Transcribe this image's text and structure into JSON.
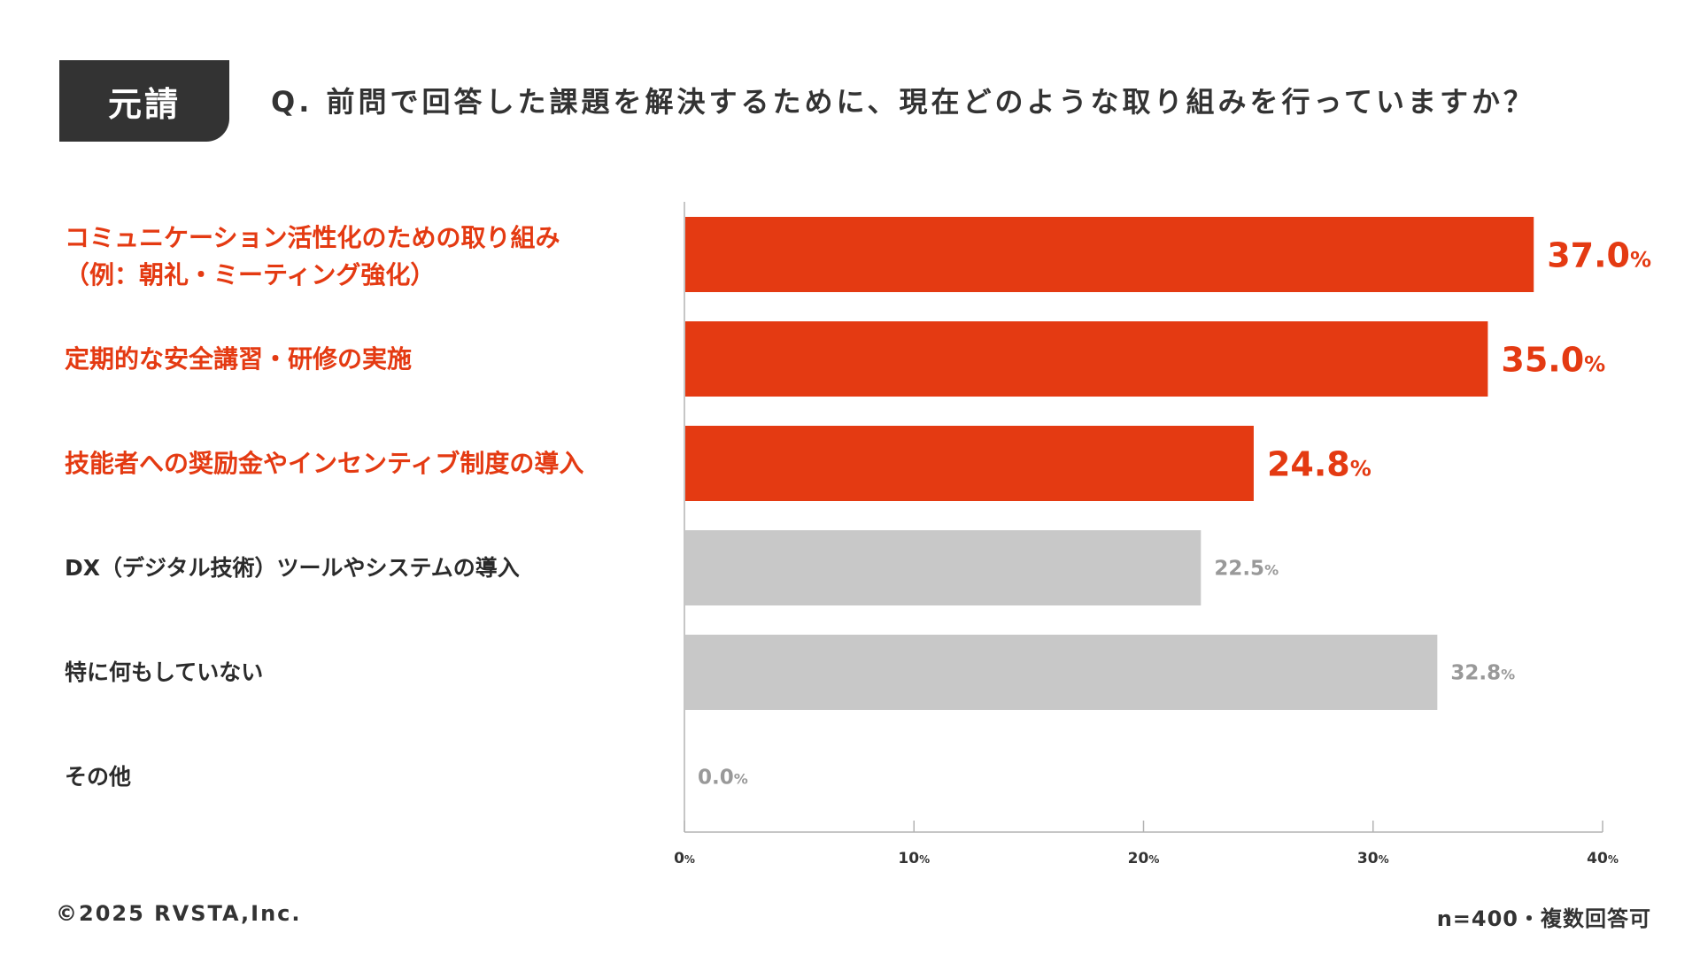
{
  "header": {
    "tag": "元請",
    "question": "Q. 前問で回答した課題を解決するために、現在どのような取り組みを行っていますか？"
  },
  "footer": {
    "copyright": "©2025 RVSTA,Inc.",
    "note": "n=400・複数回答可"
  },
  "colors": {
    "highlight": "#e43a12",
    "neutral": "#c8c8c8",
    "neutral_text": "#999999",
    "axis": "#b3b3b3"
  },
  "chart_data": {
    "type": "bar",
    "orientation": "horizontal",
    "categories": [
      [
        "コミュニケーション活性化のための取り組み",
        "（例：朝礼・ミーティング強化）"
      ],
      [
        "定期的な安全講習・研修の実施"
      ],
      [
        "技能者への奨励金やインセンティブ制度の導入"
      ],
      [
        "DX（デジタル技術）ツールやシステムの導入"
      ],
      [
        "特に何もしていない"
      ],
      [
        "その他"
      ]
    ],
    "values": [
      37.0,
      35.0,
      24.8,
      22.5,
      32.8,
      0.0
    ],
    "value_labels": [
      "37.0",
      "35.0",
      "24.8",
      "22.5",
      "32.8",
      "0.0"
    ],
    "value_unit": "%",
    "highlighted": [
      true,
      true,
      true,
      false,
      false,
      false
    ],
    "xlim": [
      0,
      40
    ],
    "xticks": [
      0,
      10,
      20,
      30,
      40
    ],
    "xtick_labels": [
      "0",
      "10",
      "20",
      "30",
      "40"
    ],
    "xtick_unit": "%",
    "grid": false,
    "legend": "none"
  }
}
